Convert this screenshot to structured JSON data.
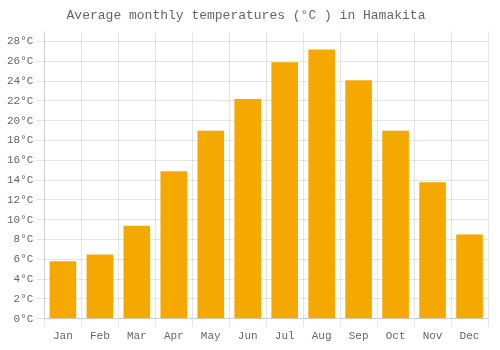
{
  "chart_data": {
    "type": "bar",
    "title": "Average monthly temperatures (°C ) in Hamakita",
    "categories": [
      "Jan",
      "Feb",
      "Mar",
      "Apr",
      "May",
      "Jun",
      "Jul",
      "Aug",
      "Sep",
      "Oct",
      "Nov",
      "Dec"
    ],
    "values": [
      5.8,
      6.5,
      9.4,
      14.9,
      19.0,
      22.2,
      25.9,
      27.2,
      24.1,
      19.0,
      13.8,
      8.5
    ],
    "color": "#F5A800",
    "ylim": [
      0,
      29
    ],
    "yticks": [
      {
        "value": 0,
        "label": "0°C"
      },
      {
        "value": 2,
        "label": "2°C"
      },
      {
        "value": 4,
        "label": "4°C"
      },
      {
        "value": 6,
        "label": "6°C"
      },
      {
        "value": 8,
        "label": "8°C"
      },
      {
        "value": 10,
        "label": "10°C"
      },
      {
        "value": 12,
        "label": "12°C"
      },
      {
        "value": 14,
        "label": "14°C"
      },
      {
        "value": 16,
        "label": "16°C"
      },
      {
        "value": 18,
        "label": "18°C"
      },
      {
        "value": 20,
        "label": "20°C"
      },
      {
        "value": 22,
        "label": "22°C"
      },
      {
        "value": 24,
        "label": "24°C"
      },
      {
        "value": 26,
        "label": "26°C"
      },
      {
        "value": 28,
        "label": "28°C"
      }
    ],
    "grid": true
  }
}
